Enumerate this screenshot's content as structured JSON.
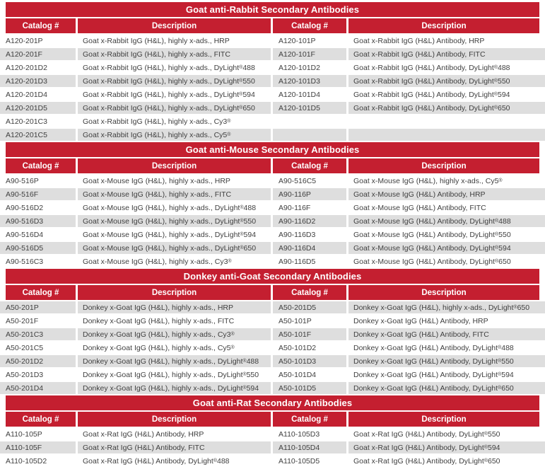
{
  "colors": {
    "header_red": "#c41f30",
    "stripe_gray": "#dedede",
    "row_white": "#ffffff",
    "body_text": "#3f3f3f",
    "header_text": "#ffffff"
  },
  "columns": [
    "Catalog #",
    "Description",
    "Catalog #",
    "Description"
  ],
  "sections": [
    {
      "title": "Goat anti-Rabbit Secondary Antibodies",
      "rows": [
        [
          "A120-201P",
          "Goat x-Rabbit IgG (H&L), highly x-ads., HRP",
          "A120-101P",
          "Goat x-Rabbit IgG (H&L) Antibody, HRP"
        ],
        [
          "A120-201F",
          "Goat x-Rabbit IgG (H&L), highly x-ads., FITC",
          "A120-101F",
          "Goat x-Rabbit IgG (H&L) Antibody, FITC"
        ],
        [
          "A120-201D2",
          "Goat x-Rabbit IgG (H&L), highly x-ads., DyLight® 488",
          "A120-101D2",
          "Goat x-Rabbit IgG (H&L) Antibody, DyLight® 488"
        ],
        [
          "A120-201D3",
          "Goat x-Rabbit IgG (H&L), highly x-ads., DyLight® 550",
          "A120-101D3",
          "Goat x-Rabbit IgG (H&L) Antibody, DyLight® 550"
        ],
        [
          "A120-201D4",
          "Goat x-Rabbit IgG (H&L), highly x-ads., DyLight® 594",
          "A120-101D4",
          "Goat x-Rabbit IgG (H&L) Antibody, DyLight® 594"
        ],
        [
          "A120-201D5",
          "Goat x-Rabbit IgG (H&L), highly x-ads., DyLight® 650",
          "A120-101D5",
          "Goat x-Rabbit IgG (H&L) Antibody, DyLight® 650"
        ],
        [
          "A120-201C3",
          "Goat x-Rabbit IgG (H&L), highly x-ads., Cy3®",
          "",
          ""
        ],
        [
          "A120-201C5",
          "Goat x-Rabbit IgG (H&L), highly x-ads., Cy5®",
          "",
          ""
        ]
      ]
    },
    {
      "title": "Goat anti-Mouse Secondary Antibodies",
      "rows": [
        [
          "A90-516P",
          "Goat x-Mouse IgG (H&L), highly x-ads., HRP",
          "A90-516C5",
          "Goat x-Mouse IgG (H&L), highly x-ads., Cy5®"
        ],
        [
          "A90-516F",
          "Goat x-Mouse IgG (H&L), highly x-ads., FITC",
          "A90-116P",
          "Goat x-Mouse IgG (H&L) Antibody, HRP"
        ],
        [
          "A90-516D2",
          "Goat x-Mouse IgG (H&L), highly x-ads., DyLight® 488",
          "A90-116F",
          "Goat x-Mouse IgG (H&L) Antibody, FITC"
        ],
        [
          "A90-516D3",
          "Goat x-Mouse IgG (H&L), highly x-ads., DyLight® 550",
          "A90-116D2",
          "Goat x-Mouse IgG (H&L) Antibody, DyLight® 488"
        ],
        [
          "A90-516D4",
          "Goat x-Mouse IgG (H&L), highly x-ads., DyLight® 594",
          "A90-116D3",
          "Goat x-Mouse IgG (H&L) Antibody, DyLight® 550"
        ],
        [
          "A90-516D5",
          "Goat x-Mouse IgG (H&L), highly x-ads., DyLight® 650",
          "A90-116D4",
          "Goat x-Mouse IgG (H&L) Antibody, DyLight® 594"
        ],
        [
          "A90-516C3",
          "Goat x-Mouse IgG (H&L), highly x-ads., Cy3®",
          "A90-116D5",
          "Goat x-Mouse IgG (H&L) Antibody, DyLight® 650"
        ]
      ]
    },
    {
      "title": "Donkey anti-Goat Secondary Antibodies",
      "rows": [
        [
          "A50-201P",
          "Donkey x-Goat IgG (H&L), highly x-ads., HRP",
          "A50-201D5",
          "Donkey x-Goat IgG (H&L), highly x-ads., DyLight® 650"
        ],
        [
          "A50-201F",
          "Donkey x-Goat IgG (H&L), highly x-ads., FITC",
          "A50-101P",
          "Donkey x-Goat IgG (H&L) Antibody, HRP"
        ],
        [
          "A50-201C3",
          "Donkey x-Goat IgG (H&L), highly x-ads., Cy3®",
          "A50-101F",
          "Donkey x-Goat IgG (H&L) Antibody, FITC"
        ],
        [
          "A50-201C5",
          "Donkey x-Goat IgG (H&L), highly x-ads., Cy5®",
          "A50-101D2",
          "Donkey x-Goat IgG (H&L) Antibody, DyLight® 488"
        ],
        [
          "A50-201D2",
          "Donkey x-Goat IgG (H&L), highly x-ads., DyLight® 488",
          "A50-101D3",
          "Donkey x-Goat IgG (H&L) Antibody, DyLight® 550"
        ],
        [
          "A50-201D3",
          "Donkey x-Goat IgG (H&L), highly x-ads., DyLight® 550",
          "A50-101D4",
          "Donkey x-Goat IgG (H&L) Antibody, DyLight® 594"
        ],
        [
          "A50-201D4",
          "Donkey x-Goat IgG (H&L), highly x-ads., DyLight® 594",
          "A50-101D5",
          "Donkey x-Goat IgG (H&L) Antibody, DyLight® 650"
        ]
      ]
    },
    {
      "title": "Goat anti-Rat Secondary Antibodies",
      "rows": [
        [
          "A110-105P",
          "Goat x-Rat IgG (H&L) Antibody, HRP",
          "A110-105D3",
          "Goat x-Rat IgG (H&L) Antibody, DyLight® 550"
        ],
        [
          "A110-105F",
          "Goat x-Rat IgG (H&L) Antibody, FITC",
          "A110-105D4",
          "Goat x-Rat IgG (H&L) Antibody, DyLight® 594"
        ],
        [
          "A110-105D2",
          "Goat x-Rat IgG (H&L) Antibody, DyLight® 488",
          "A110-105D5",
          "Goat x-Rat IgG (H&L) Antibody, DyLight® 650"
        ]
      ]
    }
  ]
}
